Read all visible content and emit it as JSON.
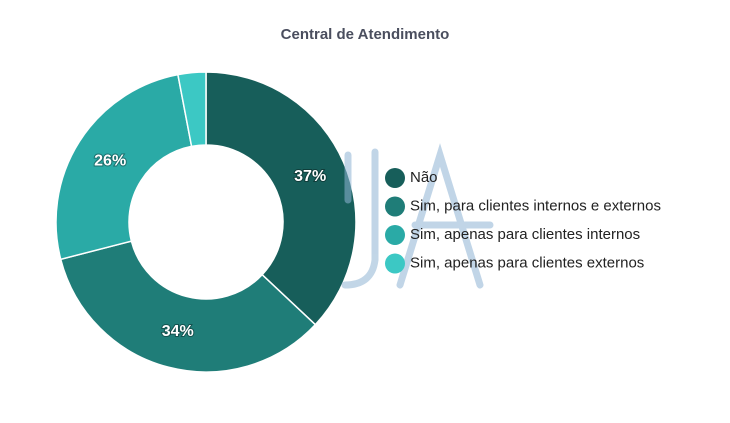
{
  "chart_data": {
    "type": "pie",
    "title": "Central de Atendimento",
    "categories": [
      "Não",
      "Sim, para clientes internos e externos",
      "Sim, apenas para clientes internos",
      "Sim, apenas para clientes externos"
    ],
    "values": [
      37,
      34,
      26,
      3
    ],
    "value_labels": [
      "37%",
      "34%",
      "26%",
      null
    ],
    "colors": [
      "#175e5a",
      "#1f7d78",
      "#2aaaa6",
      "#3cc8c4"
    ],
    "legend": "right"
  }
}
